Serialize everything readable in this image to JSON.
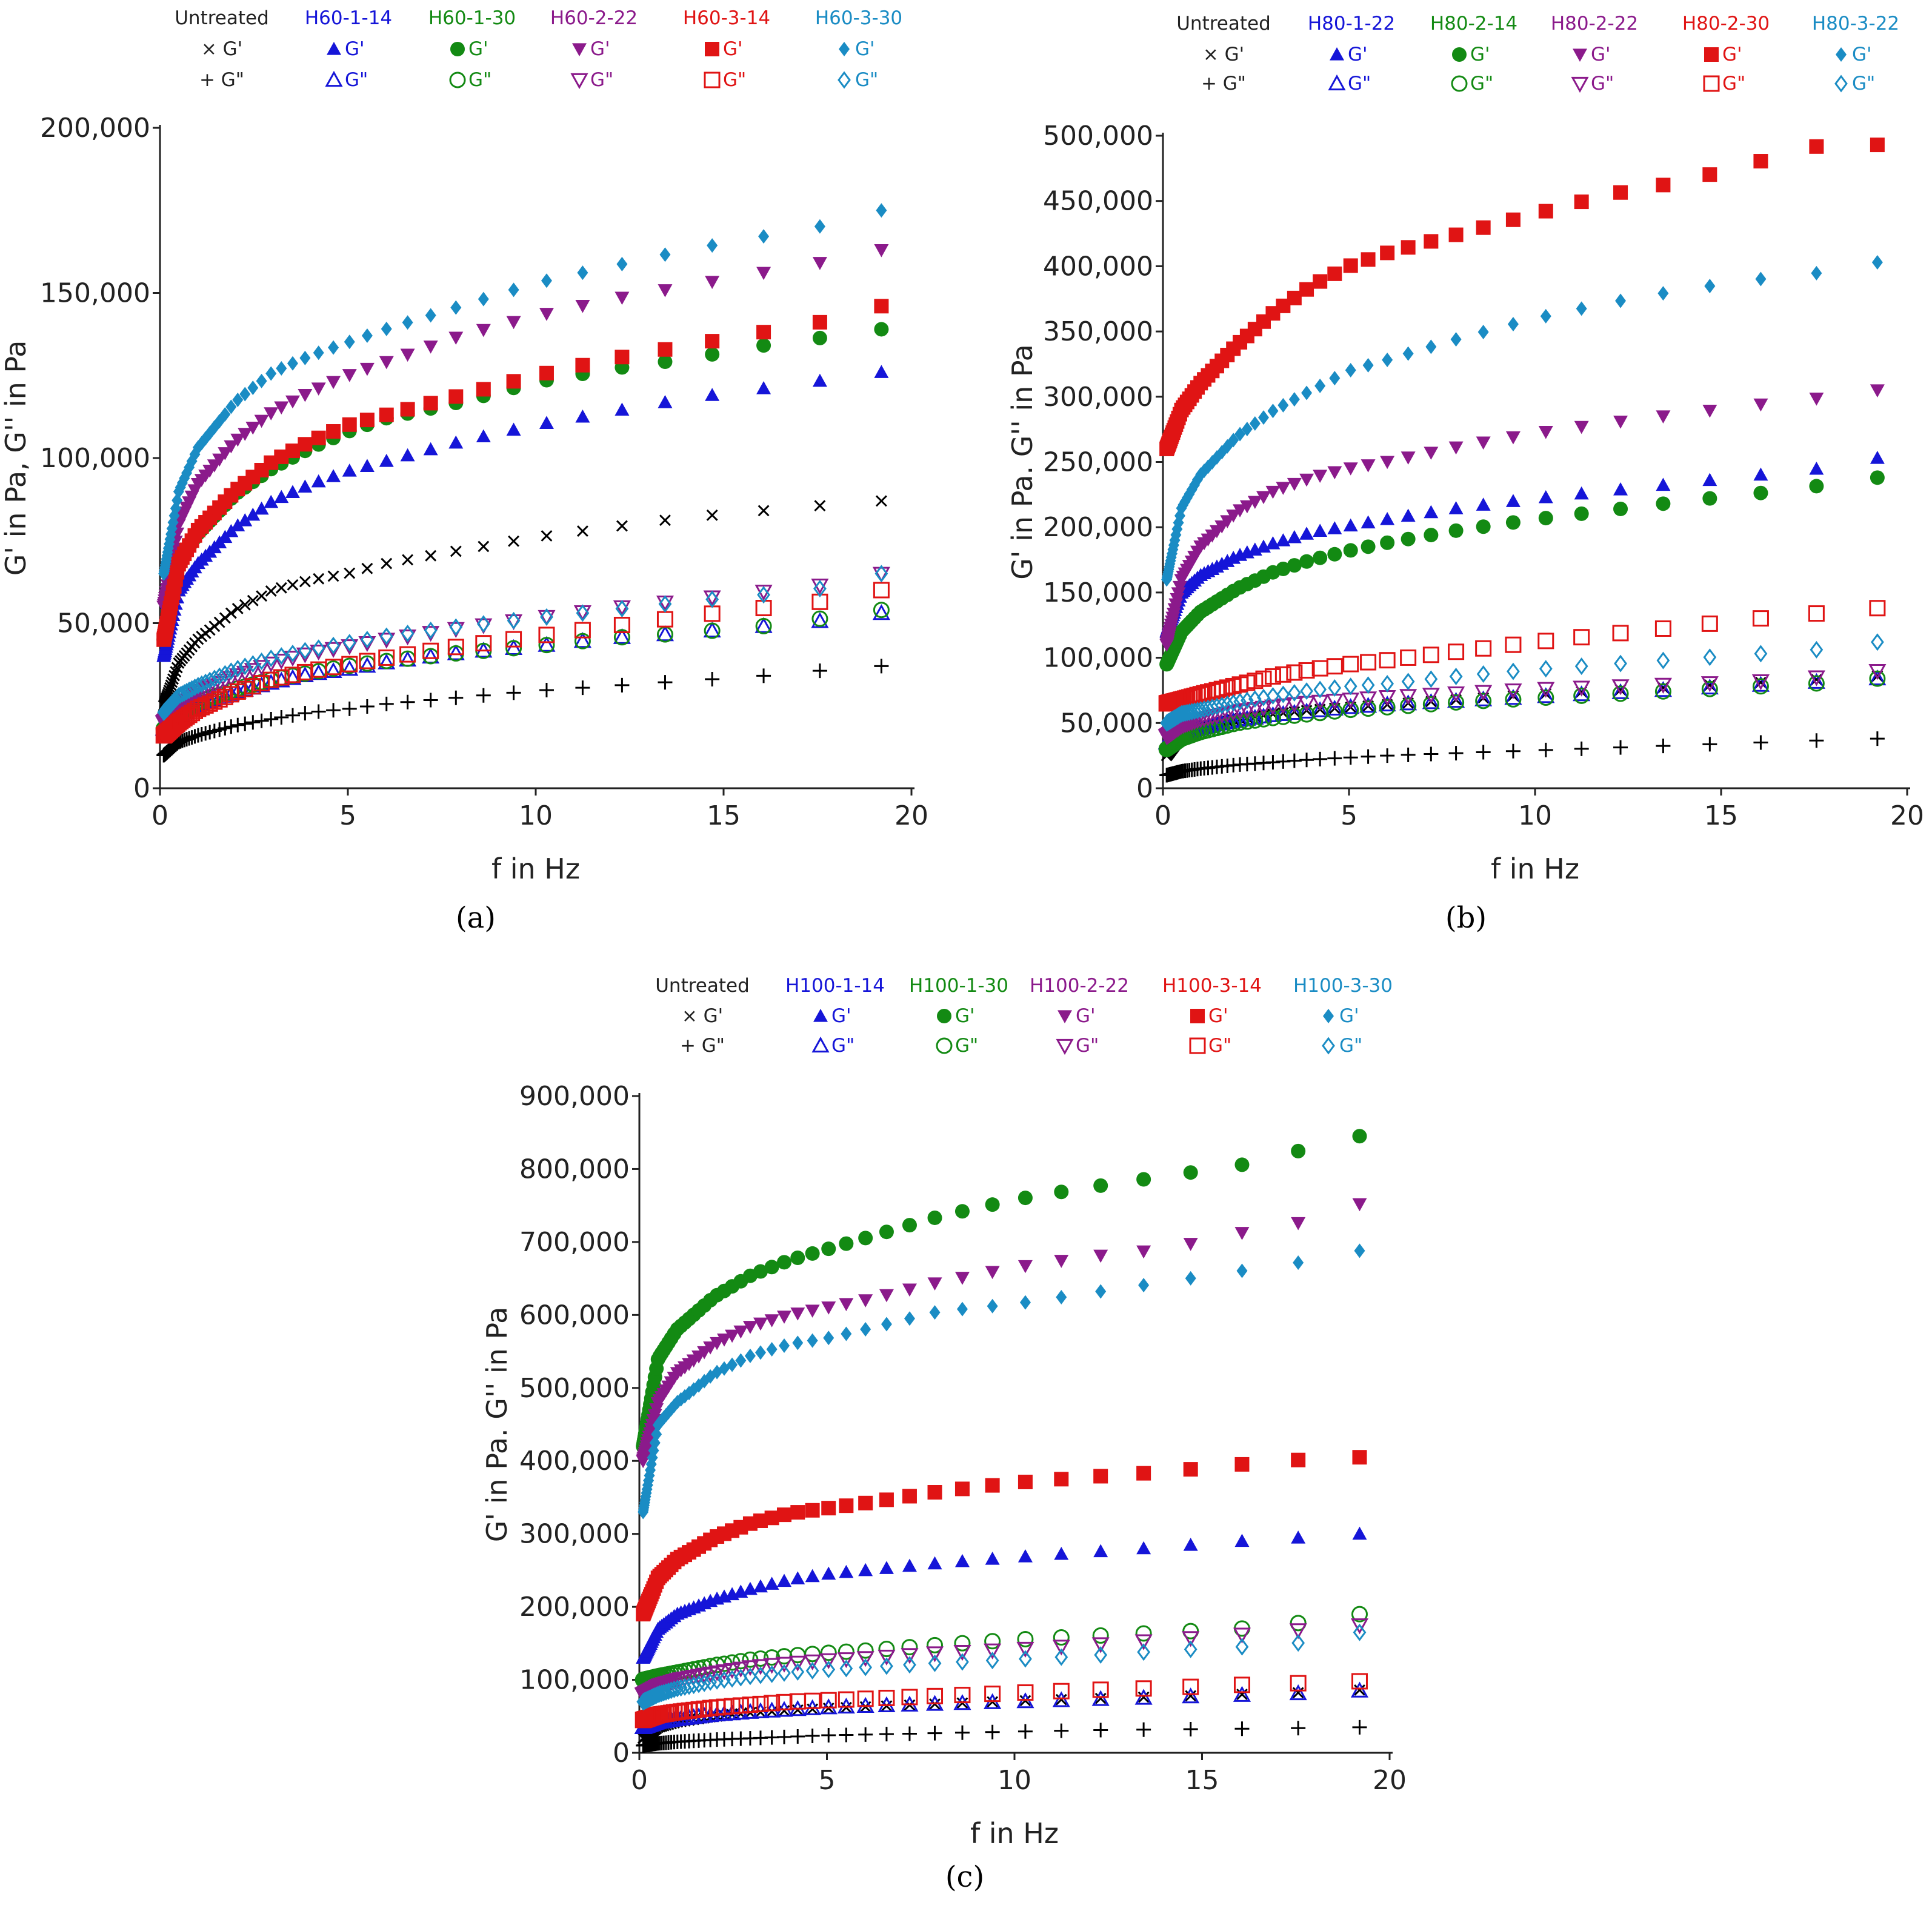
{
  "chart_data": [
    {
      "type": "scatter",
      "panel_label": "(a)",
      "xlabel": "f in Hz",
      "ylabel": "G' in Pa, G'' in Pa",
      "xlim": [
        0,
        20
      ],
      "ylim": [
        0,
        200000
      ],
      "x_ticks": [
        0,
        5,
        10,
        15,
        20
      ],
      "y_ticks": [
        0,
        50000,
        100000,
        150000,
        200000
      ],
      "legend_placement": "top",
      "x": [
        0.1,
        0.5,
        1,
        2,
        3,
        4,
        5,
        6,
        8,
        10,
        12,
        14,
        16,
        18,
        19.2
      ],
      "series": [
        {
          "name": "Untreated",
          "color": "#000000",
          "gp_marker": "x",
          "gpp_marker": "+",
          "gp_label": "× G'",
          "gpp_label": "+ G\"",
          "gp": [
            25000,
            38000,
            45000,
            54000,
            60000,
            63000,
            65000,
            68000,
            72000,
            76000,
            79000,
            82000,
            84000,
            86000,
            87000
          ],
          "gpp": [
            10000,
            14000,
            16000,
            19000,
            21000,
            23000,
            24000,
            25500,
            27500,
            29500,
            31000,
            32500,
            34000,
            36000,
            37000
          ]
        },
        {
          "name": "H60-1-14",
          "color": "#1515d8",
          "gp_marker": "tri-up",
          "gpp_marker": "tri-up-open",
          "gp_label": "G'",
          "gpp_label": "G\"",
          "gp": [
            40000,
            60000,
            68000,
            79000,
            87000,
            92000,
            96000,
            99000,
            105000,
            110000,
            114000,
            118000,
            121000,
            124000,
            126000
          ],
          "gpp": [
            18000,
            22000,
            25000,
            29000,
            32000,
            34500,
            36000,
            38000,
            41000,
            43000,
            45500,
            47000,
            49000,
            51000,
            53000
          ]
        },
        {
          "name": "H60-1-30",
          "color": "#138a13",
          "gp_marker": "circle",
          "gpp_marker": "circle-open",
          "gp_label": "G'",
          "gpp_label": "G\"",
          "gp": [
            45000,
            68000,
            77000,
            89000,
            97000,
            103000,
            108000,
            112000,
            117000,
            123000,
            127000,
            130000,
            134000,
            137000,
            139000
          ],
          "gpp": [
            18000,
            22000,
            26000,
            30000,
            33000,
            35000,
            37000,
            38500,
            41000,
            43000,
            45500,
            47000,
            49000,
            52000,
            54000
          ]
        },
        {
          "name": "H60-2-22",
          "color": "#8b1a8b",
          "gp_marker": "tri-down",
          "gpp_marker": "tri-down-open",
          "gp_label": "G'",
          "gpp_label": "G\"",
          "gp": [
            55000,
            80000,
            92000,
            105000,
            114000,
            120000,
            125000,
            129000,
            137000,
            143000,
            148000,
            152000,
            156000,
            160000,
            163000
          ],
          "gpp": [
            20000,
            25000,
            29000,
            34000,
            38000,
            41000,
            43000,
            45000,
            48500,
            51500,
            54500,
            57000,
            59500,
            62000,
            65000
          ]
        },
        {
          "name": "H60-3-14",
          "color": "#e01414",
          "gp_marker": "square",
          "gpp_marker": "square-open",
          "gp_label": "G'",
          "gpp_label": "G\"",
          "gp": [
            45000,
            68000,
            78000,
            90000,
            99000,
            105000,
            110000,
            113000,
            119000,
            125000,
            130000,
            134000,
            138000,
            142000,
            146000
          ],
          "gpp": [
            16000,
            20000,
            24000,
            29000,
            33000,
            35500,
            37500,
            39500,
            43000,
            46000,
            49000,
            52000,
            54500,
            57000,
            60000
          ]
        },
        {
          "name": "H60-3-30",
          "color": "#1a8cc4",
          "gp_marker": "diamond",
          "gpp_marker": "diamond-open",
          "gp_label": "G'",
          "gpp_label": "G\"",
          "gp": [
            65000,
            90000,
            103000,
            117000,
            126000,
            131000,
            135000,
            139000,
            146000,
            153000,
            158000,
            163000,
            167000,
            171000,
            175000
          ],
          "gpp": [
            23000,
            28000,
            31000,
            36000,
            39500,
            42000,
            44000,
            46000,
            49000,
            51500,
            54000,
            56500,
            58500,
            61000,
            65000
          ]
        }
      ]
    },
    {
      "type": "scatter",
      "panel_label": "(b)",
      "xlabel": "f in Hz",
      "ylabel": "G' in Pa. G'' in Pa",
      "xlim": [
        0,
        20
      ],
      "ylim": [
        0,
        500000
      ],
      "x_ticks": [
        0,
        5,
        10,
        15,
        20
      ],
      "y_ticks": [
        0,
        50000,
        100000,
        150000,
        200000,
        250000,
        300000,
        350000,
        400000,
        450000,
        500000
      ],
      "legend_placement": "top",
      "x": [
        0.1,
        0.5,
        1,
        2,
        3,
        4,
        5,
        6,
        8,
        10,
        12,
        14,
        16,
        18,
        19.2
      ],
      "series": [
        {
          "name": "Untreated",
          "color": "#000000",
          "gp_marker": "x",
          "gpp_marker": "+",
          "gp_label": "× G'",
          "gpp_label": "+ G\"",
          "gp": [
            25000,
            40000,
            47000,
            53000,
            57000,
            60000,
            62000,
            64000,
            68000,
            72000,
            75000,
            78000,
            81000,
            84000,
            86000
          ],
          "gpp": [
            10000,
            13000,
            15000,
            18000,
            20000,
            22000,
            23500,
            25000,
            27000,
            29000,
            31000,
            33000,
            35000,
            37000,
            38000
          ]
        },
        {
          "name": "H80-1-22",
          "color": "#1515d8",
          "gp_marker": "tri-up",
          "gpp_marker": "tri-up-open",
          "gp_label": "G'",
          "gpp_label": "G\"",
          "gp": [
            120000,
            150000,
            163000,
            178000,
            188000,
            196000,
            201000,
            206000,
            215000,
            222000,
            228000,
            234000,
            240000,
            246000,
            253000
          ],
          "gpp": [
            35000,
            42000,
            46000,
            52000,
            56000,
            59000,
            62000,
            64000,
            67000,
            70000,
            73000,
            76000,
            79000,
            82000,
            84000
          ]
        },
        {
          "name": "H80-2-14",
          "color": "#138a13",
          "gp_marker": "circle",
          "gpp_marker": "circle-open",
          "gp_label": "G'",
          "gpp_label": "G\"",
          "gp": [
            95000,
            120000,
            135000,
            153000,
            166000,
            175000,
            182000,
            188000,
            198000,
            206000,
            213000,
            220000,
            226000,
            233000,
            238000
          ],
          "gpp": [
            30000,
            38000,
            43000,
            50000,
            54000,
            57000,
            60000,
            62000,
            66000,
            69000,
            72000,
            75000,
            78000,
            81000,
            84000
          ]
        },
        {
          "name": "H80-2-22",
          "color": "#8b1a8b",
          "gp_marker": "tri-down",
          "gpp_marker": "tri-down-open",
          "gp_label": "G'",
          "gpp_label": "G\"",
          "gp": [
            110000,
            160000,
            185000,
            212000,
            228000,
            238000,
            245000,
            250000,
            262000,
            272000,
            280000,
            287000,
            294000,
            300000,
            305000
          ],
          "gpp": [
            40000,
            48000,
            53000,
            59000,
            63000,
            66000,
            68000,
            70000,
            73000,
            76000,
            78000,
            80000,
            82000,
            86000,
            90000
          ]
        },
        {
          "name": "H80-2-30",
          "color": "#e01414",
          "gp_marker": "square",
          "gpp_marker": "square-open",
          "gp_label": "G'",
          "gpp_label": "G\"",
          "gp": [
            260000,
            290000,
            310000,
            340000,
            365000,
            385000,
            400000,
            410000,
            425000,
            440000,
            455000,
            465000,
            480000,
            495000,
            493000
          ],
          "gpp": [
            65000,
            68000,
            72000,
            79000,
            86000,
            91000,
            95000,
            98000,
            105000,
            112000,
            118000,
            124000,
            130000,
            135000,
            138000
          ]
        },
        {
          "name": "H80-3-22",
          "color": "#1a8cc4",
          "gp_marker": "diamond",
          "gpp_marker": "diamond-open",
          "gp_label": "G'",
          "gpp_label": "G\"",
          "gp": [
            160000,
            215000,
            240000,
            270000,
            290000,
            305000,
            320000,
            328000,
            345000,
            360000,
            372000,
            382000,
            390000,
            396000,
            403000
          ],
          "gpp": [
            50000,
            57000,
            60000,
            66000,
            71000,
            75000,
            78000,
            80000,
            86000,
            91000,
            95000,
            99000,
            103000,
            107000,
            112000
          ]
        }
      ]
    },
    {
      "type": "scatter",
      "panel_label": "(c)",
      "xlabel": "f in Hz",
      "ylabel": "G' in Pa. G'' in Pa",
      "xlim": [
        0,
        20
      ],
      "ylim": [
        0,
        900000
      ],
      "x_ticks": [
        0,
        5,
        10,
        15,
        20
      ],
      "y_ticks": [
        0,
        100000,
        200000,
        300000,
        400000,
        500000,
        600000,
        700000,
        800000,
        900000
      ],
      "legend_placement": "top",
      "x": [
        0.1,
        0.5,
        1,
        2,
        3,
        4,
        5,
        6,
        8,
        10,
        12,
        14,
        16,
        18,
        19.2
      ],
      "series": [
        {
          "name": "Untreated",
          "color": "#000000",
          "gp_marker": "x",
          "gpp_marker": "+",
          "gp_label": "× G'",
          "gpp_label": "+ G\"",
          "gp": [
            20000,
            35000,
            42000,
            50000,
            55000,
            58000,
            61000,
            63000,
            67000,
            71000,
            74000,
            77000,
            80000,
            83000,
            86000
          ],
          "gpp": [
            10000,
            13000,
            15000,
            18000,
            20000,
            22000,
            24000,
            25000,
            27000,
            29000,
            31000,
            32000,
            33000,
            34000,
            35000
          ]
        },
        {
          "name": "H100-1-14",
          "color": "#1515d8",
          "gp_marker": "tri-up",
          "gpp_marker": "tri-up-open",
          "gp_label": "G'",
          "gpp_label": "G\"",
          "gp": [
            130000,
            170000,
            190000,
            210000,
            225000,
            237000,
            245000,
            250000,
            260000,
            268000,
            275000,
            282000,
            290000,
            296000,
            300000
          ],
          "gpp": [
            35000,
            42000,
            46000,
            52000,
            56000,
            59000,
            62000,
            64000,
            67000,
            70000,
            73000,
            76000,
            79000,
            82000,
            85000
          ]
        },
        {
          "name": "H100-1-30",
          "color": "#138a13",
          "gp_marker": "circle",
          "gpp_marker": "circle-open",
          "gp_label": "G'",
          "gpp_label": "G\"",
          "gp": [
            420000,
            540000,
            580000,
            625000,
            655000,
            675000,
            690000,
            705000,
            735000,
            758000,
            775000,
            790000,
            805000,
            830000,
            845000
          ],
          "gpp": [
            100000,
            105000,
            110000,
            120000,
            128000,
            133000,
            137000,
            140000,
            148000,
            155000,
            160000,
            165000,
            170000,
            180000,
            190000
          ]
        },
        {
          "name": "H100-2-22",
          "color": "#8b1a8b",
          "gp_marker": "tri-down",
          "gpp_marker": "tri-down-open",
          "gp_label": "G'",
          "gpp_label": "G\"",
          "gp": [
            400000,
            480000,
            520000,
            560000,
            585000,
            600000,
            610000,
            620000,
            645000,
            665000,
            680000,
            690000,
            712000,
            730000,
            752000
          ],
          "gpp": [
            80000,
            92000,
            100000,
            110000,
            118000,
            123000,
            127000,
            130000,
            137000,
            142000,
            148000,
            155000,
            162000,
            170000,
            175000
          ]
        },
        {
          "name": "H100-3-14",
          "color": "#e01414",
          "gp_marker": "square",
          "gpp_marker": "square-open",
          "gp_label": "G'",
          "gpp_label": "G\"",
          "gp": [
            190000,
            240000,
            265000,
            295000,
            315000,
            328000,
            335000,
            342000,
            358000,
            370000,
            378000,
            385000,
            395000,
            403000,
            405000
          ],
          "gpp": [
            45000,
            52000,
            56000,
            62000,
            66000,
            70000,
            72000,
            74000,
            78000,
            82000,
            86000,
            89000,
            93000,
            96000,
            98000
          ]
        },
        {
          "name": "H100-3-30",
          "color": "#1a8cc4",
          "gp_marker": "diamond",
          "gpp_marker": "diamond-open",
          "gp_label": "G'",
          "gpp_label": "G\"",
          "gp": [
            330000,
            450000,
            480000,
            520000,
            545000,
            560000,
            568000,
            580000,
            605000,
            615000,
            630000,
            645000,
            660000,
            675000,
            688000
          ],
          "gpp": [
            70000,
            80000,
            88000,
            98000,
            105000,
            110000,
            114000,
            117000,
            123000,
            128000,
            133000,
            140000,
            145000,
            152000,
            165000
          ]
        }
      ]
    }
  ]
}
